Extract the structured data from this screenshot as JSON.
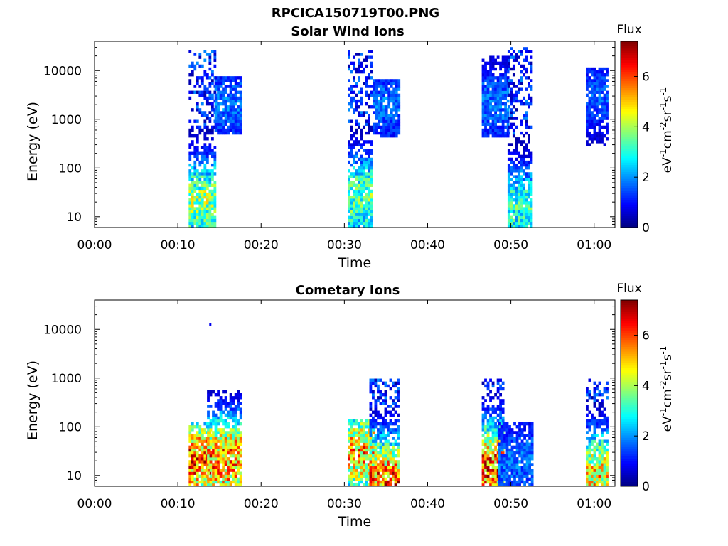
{
  "figure_title": "RPCICA150719T00.PNG",
  "chart_data": [
    {
      "type": "heatmap",
      "title": "Solar Wind Ions",
      "xlabel": "Time",
      "ylabel": "Energy (eV)",
      "x_ticks": [
        "00:00",
        "00:10",
        "00:20",
        "00:30",
        "00:40",
        "00:50",
        "01:00"
      ],
      "x_tick_minutes": [
        0,
        10,
        20,
        30,
        40,
        50,
        60
      ],
      "xlim_minutes": [
        0,
        62.5
      ],
      "y_scale": "log",
      "y_ticks": [
        "10",
        "100",
        "1000",
        "10000"
      ],
      "y_tick_values": [
        10,
        100,
        1000,
        10000
      ],
      "ylim": [
        6,
        40000
      ],
      "colorbar": {
        "label": "Flux",
        "units": "eV-1cm-2sr-1s-1",
        "ticks": [
          "0",
          "2",
          "4",
          "6"
        ],
        "tick_values": [
          0,
          2,
          4,
          6
        ],
        "range": [
          0,
          7.4
        ],
        "colormap": "jet"
      },
      "bursts": [
        {
          "t_start": 11.3,
          "t_end": 14.4,
          "e_min": 6,
          "e_max": 28000,
          "peak": 4.5,
          "peak_energy": 20
        },
        {
          "t_start": 14.4,
          "t_end": 17.5,
          "e_min": 500,
          "e_max": 8000,
          "peak": 2.0,
          "peak_energy": 2000
        },
        {
          "t_start": 30.4,
          "t_end": 33.4,
          "e_min": 6,
          "e_max": 25000,
          "peak": 4.0,
          "peak_energy": 25
        },
        {
          "t_start": 33.4,
          "t_end": 36.5,
          "e_min": 400,
          "e_max": 7000,
          "peak": 2.0,
          "peak_energy": 2000
        },
        {
          "t_start": 46.5,
          "t_end": 49.6,
          "e_min": 400,
          "e_max": 20000,
          "peak": 2.0,
          "peak_energy": 2000
        },
        {
          "t_start": 49.6,
          "t_end": 52.6,
          "e_min": 6,
          "e_max": 30000,
          "peak": 3.6,
          "peak_energy": 15
        },
        {
          "t_start": 59.0,
          "t_end": 61.6,
          "e_min": 300,
          "e_max": 12000,
          "peak": 1.8,
          "peak_energy": 3000
        }
      ]
    },
    {
      "type": "heatmap",
      "title": "Cometary Ions",
      "xlabel": "Time",
      "ylabel": "Energy (eV)",
      "x_ticks": [
        "00:00",
        "00:10",
        "00:20",
        "00:30",
        "00:40",
        "00:50",
        "01:00"
      ],
      "x_tick_minutes": [
        0,
        10,
        20,
        30,
        40,
        50,
        60
      ],
      "xlim_minutes": [
        0,
        62.5
      ],
      "y_scale": "log",
      "y_ticks": [
        "10",
        "100",
        "1000",
        "10000"
      ],
      "y_tick_values": [
        10,
        100,
        1000,
        10000
      ],
      "ylim": [
        6,
        40000
      ],
      "colorbar": {
        "label": "Flux",
        "units": "eV-1cm-2sr-1s-1",
        "ticks": [
          "0",
          "2",
          "4",
          "6"
        ],
        "tick_values": [
          0,
          2,
          4,
          6
        ],
        "range": [
          0,
          7.4
        ],
        "colormap": "jet"
      },
      "bursts": [
        {
          "t_start": 11.3,
          "t_end": 14.0,
          "e_min": 6,
          "e_max": 120,
          "peak": 6.8,
          "peak_energy": 20
        },
        {
          "t_start": 13.5,
          "t_end": 17.6,
          "e_min": 6,
          "e_max": 600,
          "peak": 6.5,
          "peak_energy": 20
        },
        {
          "t_start": 30.4,
          "t_end": 33.5,
          "e_min": 6,
          "e_max": 150,
          "peak": 6.0,
          "peak_energy": 30
        },
        {
          "t_start": 33.0,
          "t_end": 36.4,
          "e_min": 6,
          "e_max": 1000,
          "peak": 6.5,
          "peak_energy": 8
        },
        {
          "t_start": 46.5,
          "t_end": 49.0,
          "e_min": 6,
          "e_max": 1000,
          "peak": 6.8,
          "peak_energy": 15
        },
        {
          "t_start": 48.5,
          "t_end": 52.5,
          "e_min": 6,
          "e_max": 120,
          "peak": 2.0,
          "peak_energy": 20
        },
        {
          "t_start": 59.0,
          "t_end": 61.6,
          "e_min": 6,
          "e_max": 1000,
          "peak": 5.5,
          "peak_energy": 10
        }
      ],
      "isolated_points": [
        {
          "t": 13.9,
          "e": 12500,
          "flux": 0.8
        }
      ]
    }
  ]
}
